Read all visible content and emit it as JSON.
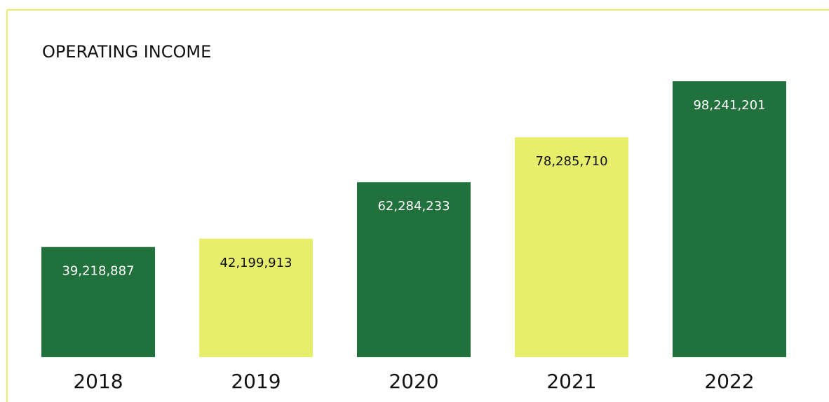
{
  "chart_data": {
    "type": "bar",
    "title": "OPERATING INCOME",
    "categories": [
      "2018",
      "2019",
      "2020",
      "2021",
      "2022"
    ],
    "values": [
      39218887,
      42199913,
      62284233,
      78285710,
      98241201
    ],
    "value_labels": [
      "39,218,887",
      "42,199,913",
      "62,284,233",
      "78,285,710",
      "98,241,201"
    ],
    "colors": [
      "#21713c",
      "#e6ee6c",
      "#21713c",
      "#e6ee6c",
      "#21713c"
    ]
  }
}
